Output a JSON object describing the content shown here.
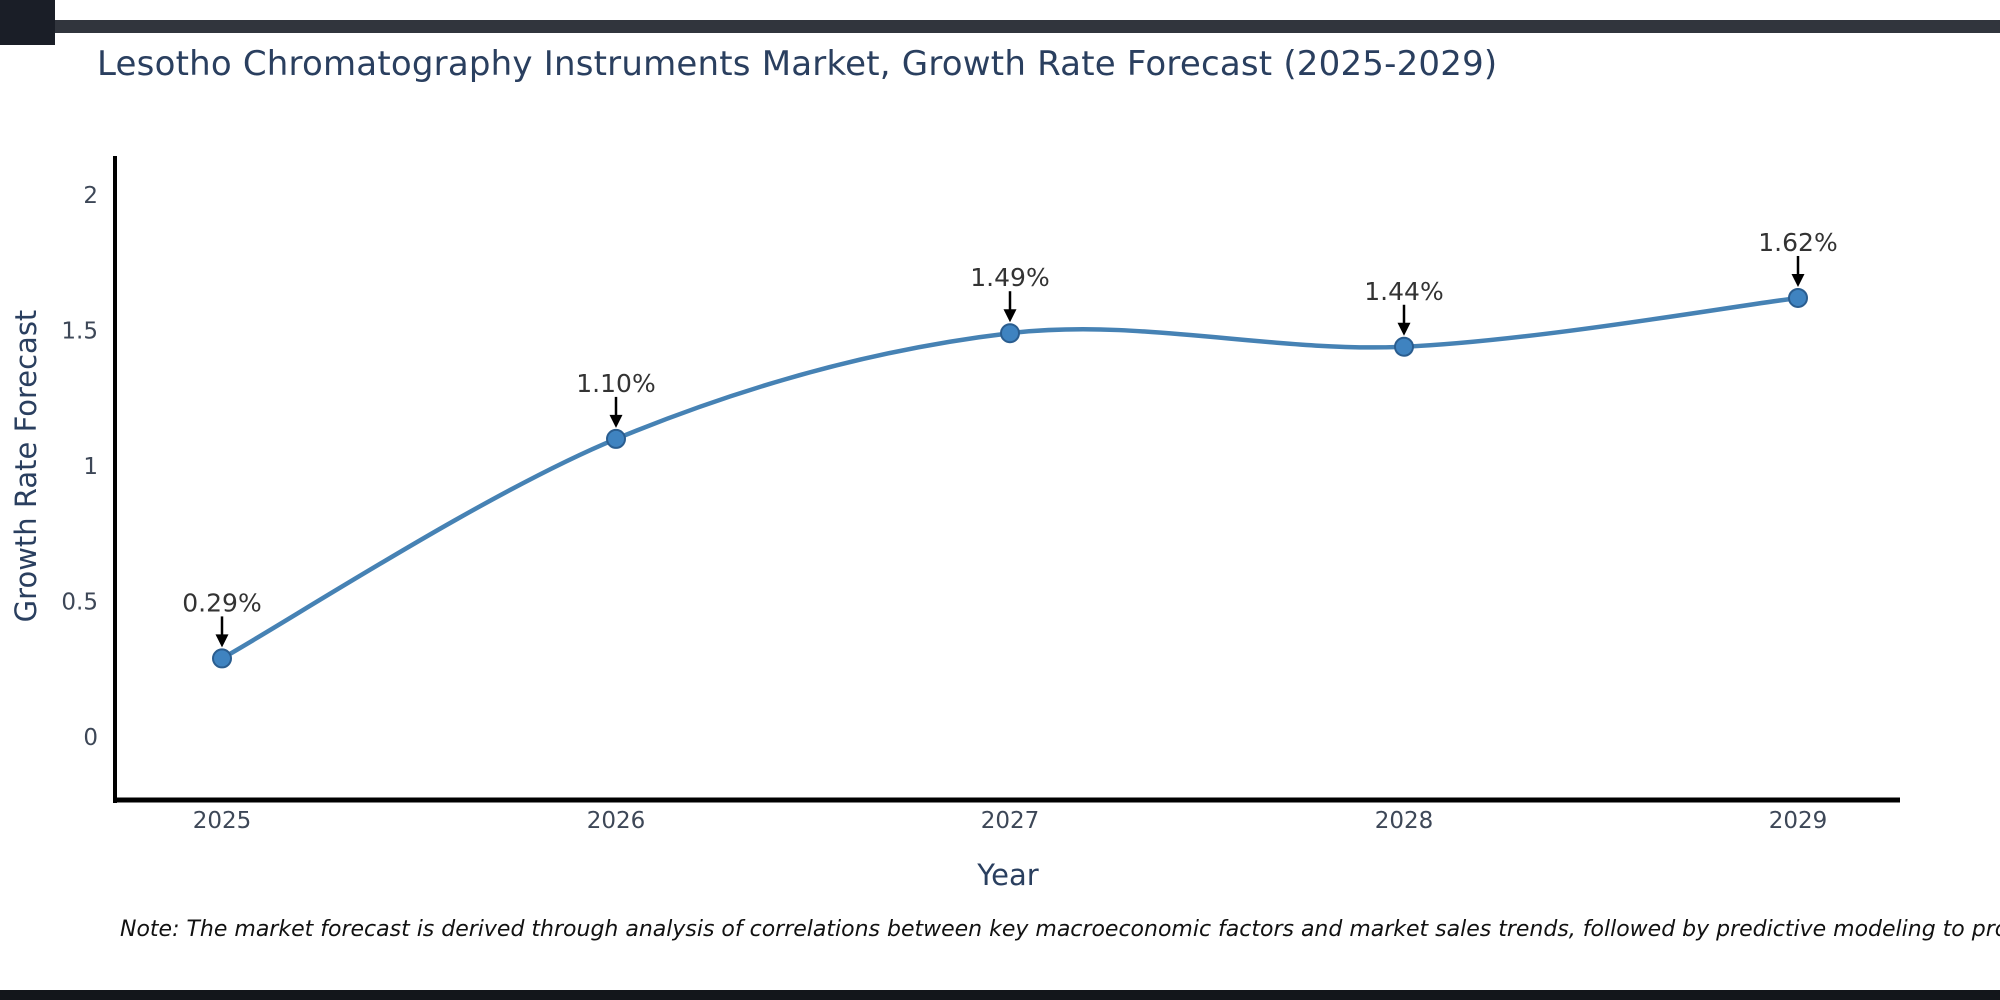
{
  "note": "Note: The market forecast is derived through analysis of correlations between key macroeconomic factors and market sales trends, followed by predictive modeling to project future sales",
  "chart_data": {
    "type": "line",
    "title": "Lesotho Chromatography Instruments Market, Growth Rate Forecast (2025-2029)",
    "xlabel": "Year",
    "ylabel": "Growth Rate Forecast",
    "categories": [
      "2025",
      "2026",
      "2027",
      "2028",
      "2029"
    ],
    "values": [
      0.29,
      1.1,
      1.49,
      1.44,
      1.62
    ],
    "point_labels": [
      "0.29%",
      "1.10%",
      "1.49%",
      "1.44%",
      "1.62%"
    ],
    "yticks": [
      0,
      0.5,
      1,
      1.5,
      2
    ],
    "ytick_labels": [
      "0",
      "0.5",
      "1",
      "1.5",
      "2"
    ],
    "ylim": [
      -0.24,
      2.15
    ],
    "grid": false,
    "legend": "none",
    "smooth": true,
    "annotation_style": "value label with black down-arrow onto each marker",
    "colors": {
      "title": "#2a3f5f",
      "axis_label": "#2a3f5f",
      "tick_label": "#3d4757",
      "line": "#4682b4",
      "marker_fill": "#3f83c0",
      "marker_edge": "#2a5d8f",
      "annotation_text": "#333333",
      "arrow": "#000000",
      "spine": "#000000",
      "note_text": "#111111",
      "background": "#ffffff"
    }
  },
  "screen_edges": {
    "top_line": "#31353d",
    "corner_block": "#1a1e27",
    "bottom_bar": "#13161b"
  }
}
